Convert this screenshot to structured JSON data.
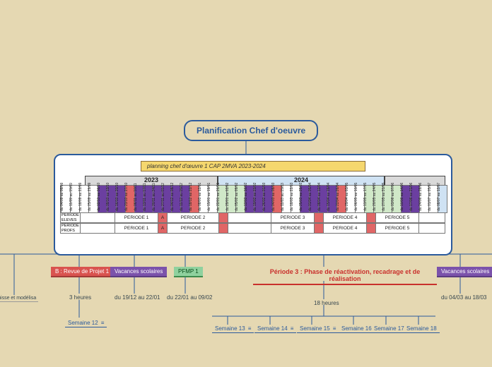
{
  "root": "Planification Chef d'oeuvre",
  "panel_title": "planning chef d'œuvre 1 CAP 2MVA 2023-2024",
  "years": {
    "y23": "2023",
    "y24": "2024"
  },
  "col_dates": [
    "du 04/09 au 08/09",
    "du 11/09 au 15/09",
    "du 18/09 au 22/09",
    "du 25/09 au 29/09",
    "du 02/10 au 06/10",
    "du 09/10 au 13/10",
    "du 16/10 au 20/10",
    "du 23/10 au 27/10",
    "du 06/11 au 10/11",
    "du 13/11 au 17/11",
    "du 20/11 au 24/11",
    "du 27/11 au 01/12",
    "du 04/12 au 08/12",
    "du 11/12 au 15/12",
    "du 18/12 au 22/12",
    "du 08/01 au 12/01",
    "du 15/01 au 19/01",
    "du 22/01 au 26/01",
    "du 29/01 au 02/02",
    "du 05/02 au 09/02",
    "du 12/02 au 16/02",
    "du 19/02 au 23/02",
    "du 26/02 au 01/03",
    "du 04/03 au 08/03",
    "du 11/03 au 15/03",
    "du 18/03 au 22/03",
    "du 25/03 au 29/03",
    "du 01/04 au 05/04",
    "du 08/04 au 12/04",
    "du 15/04 au 19/04",
    "du 22/04 au 26/04",
    "du 29/04 au 03/05",
    "du 06/05 au 10/05",
    "du 13/05 au 17/05",
    "du 20/05 au 24/05",
    "du 27/05 au 31/05",
    "du 03/06 au 07/06",
    "du 10/06 au 14/06",
    "du 17/06 au 21/06",
    "du 24/06 au 28/06",
    "du 01/07 au 05/07",
    "du 08/07 au 12/07"
  ],
  "col_colors": [
    "#ffffff",
    "#ffffff",
    "#ffffff",
    "#ffffff",
    "#6b3fa0",
    "#6b3fa0",
    "#6b3fa0",
    "#e06666",
    "#6b3fa0",
    "#6b3fa0",
    "#6b3fa0",
    "#6b3fa0",
    "#6b3fa0",
    "#6b3fa0",
    "#e06666",
    "#ffffff",
    "#ffffff",
    "#d0e8c8",
    "#d0e8c8",
    "#d0e8c8",
    "#6b3fa0",
    "#6b3fa0",
    "#6b3fa0",
    "#e06666",
    "#ffffff",
    "#ffffff",
    "#6b3fa0",
    "#6b3fa0",
    "#6b3fa0",
    "#6b3fa0",
    "#e06666",
    "#ffffff",
    "#ffffff",
    "#d0e8c8",
    "#d0e8c8",
    "#d0e8c8",
    "#d0e8c8",
    "#6b3fa0",
    "#6b3fa0",
    "#ffffff",
    "#ffffff",
    "#cfe2f3"
  ],
  "row_labels": {
    "eleves": "PERIODE ELEVES",
    "profs": "PERIODE PROFS"
  },
  "periods": [
    "PERIODE 1",
    "PERIODE 2",
    "PERIODE 3",
    "PERIODE 4",
    "PERIODE 5"
  ],
  "A_marks": [
    "A",
    "A",
    "A",
    "A"
  ],
  "branches": {
    "left_cut": "uis, esquisse et modélisa",
    "b_revue": "B : Revue de Projet 1",
    "b_hours": "3 heures",
    "b_week": "Semaine 12",
    "vac1": "Vacances scolaires",
    "vac1_dates": "du 19/12 au 22/01",
    "pfmp": "PFMP 1",
    "pfmp_dates": "du 22/01 au 09/02",
    "p3_title": "Période 3 :  Phase de réactivation, recadrage et de réalisation",
    "p3_hours": "18 heures",
    "weeks": [
      "Semaine 13",
      "Semaine 14",
      "Semaine 15",
      "Semaine 16",
      "Semaine 17",
      "Semaine 18"
    ],
    "vac2": "Vacances scolaires",
    "vac2_dates": "du 04/03 au 18/03"
  },
  "style": {
    "bg": "#e5d8b2",
    "blue": "#2b5a9c",
    "red": "#d9534f",
    "purple": "#7b52ab",
    "green": "#8fd19e",
    "pink": "#c9302c",
    "menu_glyph": "≡"
  }
}
